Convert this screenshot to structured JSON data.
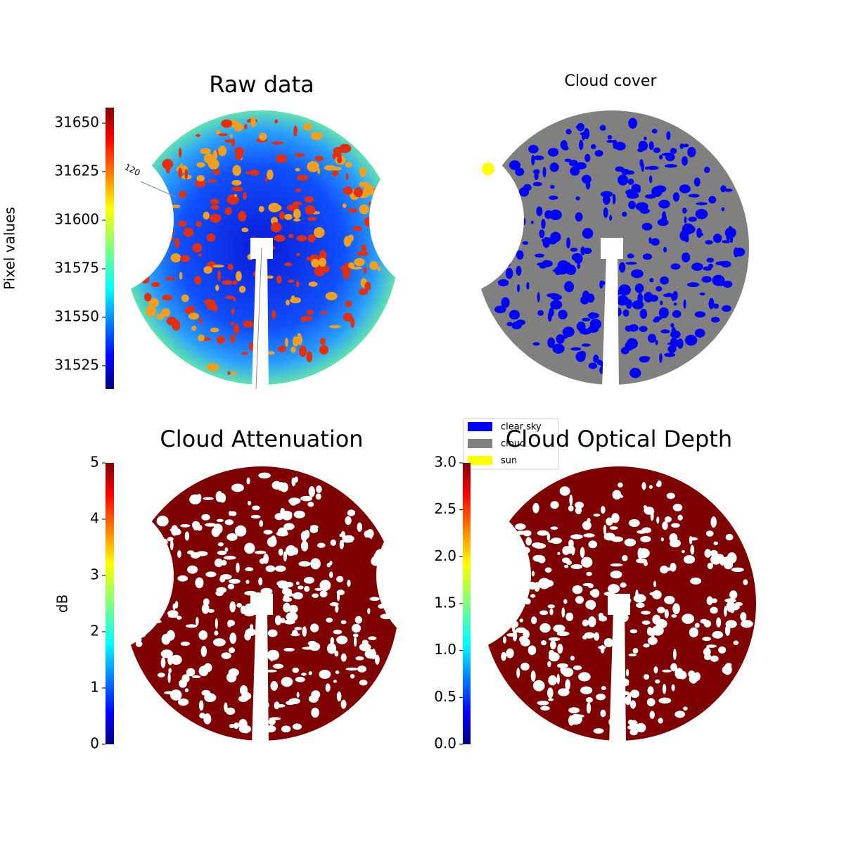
{
  "chart_data": [
    {
      "type": "image",
      "title": "Raw data",
      "colorbar_label": "Pixel values",
      "colormap": "jet",
      "clim": [
        31513,
        31658
      ],
      "cticks": [
        31525,
        31550,
        31575,
        31600,
        31625,
        31650
      ],
      "annotations": [
        "120"
      ]
    },
    {
      "type": "image",
      "title": "Cloud cover",
      "legend": [
        {
          "name": "clear sky",
          "color": "#0000ff"
        },
        {
          "name": "cloud",
          "color": "#808080"
        },
        {
          "name": "sun",
          "color": "#ffff00"
        }
      ]
    },
    {
      "type": "image",
      "title": "Cloud Attenuation",
      "colorbar_label": "dB",
      "colormap": "jet",
      "clim": [
        0,
        5
      ],
      "cticks": [
        0,
        1,
        2,
        3,
        4,
        5
      ]
    },
    {
      "type": "image",
      "title": "Cloud Optical Depth",
      "colormap": "jet",
      "clim": [
        0,
        3
      ],
      "cticks": [
        {
          "value": 0,
          "label": "0.0"
        },
        0.5,
        {
          "value": 1,
          "label": "1.0"
        },
        1.5,
        {
          "value": 2,
          "label": "2.0"
        },
        2.5,
        {
          "value": 3,
          "label": "3.0"
        }
      ]
    }
  ]
}
